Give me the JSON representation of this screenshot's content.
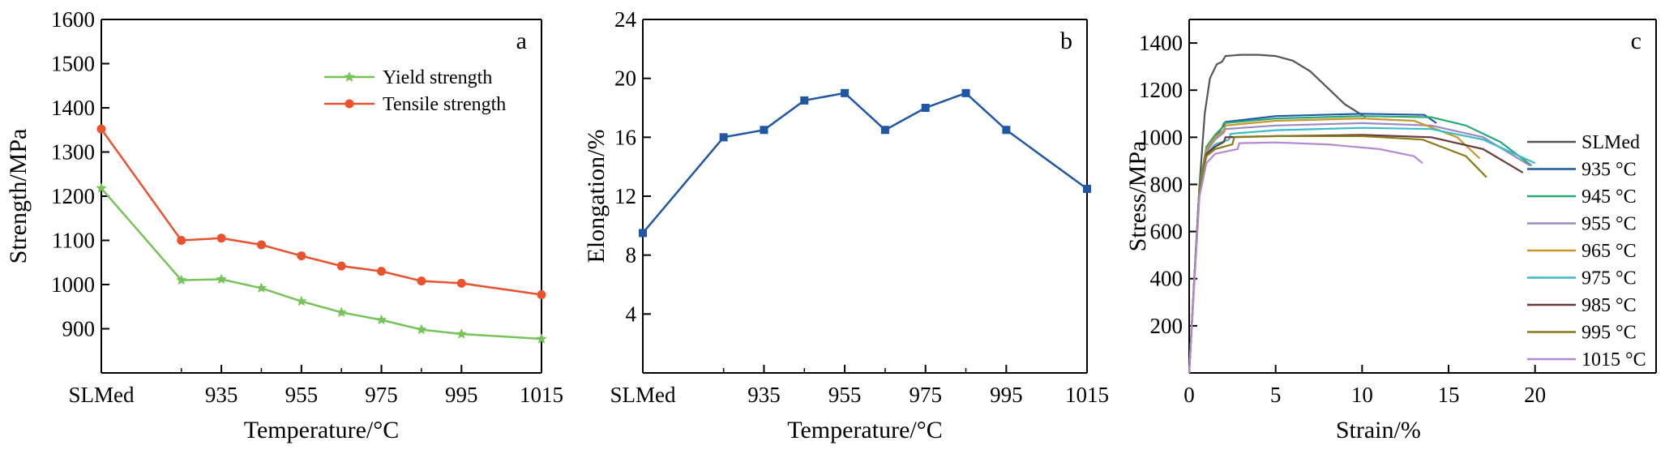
{
  "chart_data": [
    {
      "panel_label": "a",
      "type": "line",
      "xlabel": "Temperature/°C",
      "ylabel": "Strength/MPa",
      "ylim": [
        800,
        1600
      ],
      "y_ticks": [
        "900",
        "1000",
        "1100",
        "1200",
        "1300",
        "1400",
        "1500",
        "1600"
      ],
      "categories": [
        "SLMed",
        "925",
        "935",
        "945",
        "955",
        "965",
        "975",
        "985",
        "995",
        "1015"
      ],
      "x_tick_labels": [
        "SLMed",
        "935",
        "955",
        "975",
        "995",
        "1015"
      ],
      "legend_position": "top-right",
      "series": [
        {
          "name": "Yield strength",
          "color": "#76c35a",
          "marker": "star",
          "values": [
            1218,
            1010,
            1012,
            992,
            962,
            937,
            920,
            898,
            888,
            877
          ]
        },
        {
          "name": "Tensile strength",
          "color": "#e9522f",
          "marker": "circle",
          "values": [
            1352,
            1100,
            1105,
            1090,
            1065,
            1042,
            1030,
            1008,
            1003,
            977
          ]
        }
      ]
    },
    {
      "panel_label": "b",
      "type": "line",
      "xlabel": "Temperature/°C",
      "ylabel": "Elongation/%",
      "ylim": [
        0,
        24
      ],
      "y_ticks": [
        "4",
        "8",
        "12",
        "16",
        "20",
        "24"
      ],
      "categories": [
        "SLMed",
        "925",
        "935",
        "945",
        "955",
        "965",
        "975",
        "985",
        "995",
        "1015"
      ],
      "x_tick_labels": [
        "SLMed",
        "935",
        "955",
        "975",
        "995",
        "1015"
      ],
      "series": [
        {
          "color": "#1f56a6",
          "marker": "square",
          "values": [
            9.5,
            16.0,
            16.5,
            18.5,
            19.0,
            16.5,
            18.0,
            19.0,
            16.5,
            12.5
          ]
        }
      ]
    },
    {
      "panel_label": "c",
      "type": "line",
      "xlabel": "Strain/%",
      "ylabel": "Stress/MPa",
      "xlim": [
        0,
        27
      ],
      "ylim": [
        0,
        1500
      ],
      "x_ticks": [
        "0",
        "5",
        "10",
        "15",
        "20"
      ],
      "y_ticks": [
        "200",
        "400",
        "600",
        "800",
        "1000",
        "1200",
        "1400"
      ],
      "legend_position": "right",
      "series": [
        {
          "name": "SLMed",
          "color": "#555555",
          "x": [
            0,
            0.3,
            0.6,
            0.9,
            1.2,
            1.6,
            1.9,
            2.1,
            3,
            4,
            5,
            6,
            7,
            8,
            9,
            10.2
          ],
          "y": [
            0,
            400,
            800,
            1100,
            1250,
            1310,
            1320,
            1345,
            1350,
            1350,
            1345,
            1325,
            1280,
            1210,
            1140,
            1085
          ]
        },
        {
          "name": "935 °C",
          "color": "#1f5aa8",
          "x": [
            0,
            0.3,
            0.6,
            1.0,
            1.5,
            2.0,
            2.1,
            5,
            10,
            13.6,
            14.3
          ],
          "y": [
            0,
            400,
            800,
            950,
            1000,
            1050,
            1065,
            1090,
            1100,
            1095,
            1060
          ]
        },
        {
          "name": "945 °C",
          "color": "#2aa876",
          "x": [
            0,
            0.3,
            0.6,
            1.0,
            1.5,
            1.9,
            2.0,
            5,
            10,
            14,
            16,
            18,
            19.8
          ],
          "y": [
            0,
            400,
            800,
            960,
            1010,
            1040,
            1060,
            1080,
            1090,
            1085,
            1050,
            980,
            880
          ]
        },
        {
          "name": "955 °C",
          "color": "#9a8ac2",
          "x": [
            0,
            0.3,
            0.6,
            1.0,
            1.5,
            2.0,
            2.1,
            5,
            10,
            14,
            17,
            19.7
          ],
          "y": [
            0,
            400,
            780,
            940,
            990,
            1020,
            1035,
            1050,
            1060,
            1050,
            1000,
            880
          ]
        },
        {
          "name": "965 °C",
          "color": "#c8962a",
          "x": [
            0,
            0.3,
            0.6,
            1.0,
            1.5,
            2.0,
            2.1,
            5,
            10,
            13,
            15.5,
            16.8
          ],
          "y": [
            0,
            400,
            780,
            950,
            1000,
            1030,
            1050,
            1070,
            1080,
            1070,
            1000,
            910
          ]
        },
        {
          "name": "975 °C",
          "color": "#3bbcc8",
          "x": [
            0,
            0.3,
            0.6,
            1.0,
            1.5,
            2.3,
            2.4,
            5,
            10,
            14,
            17,
            20
          ],
          "y": [
            0,
            400,
            780,
            930,
            970,
            990,
            1015,
            1030,
            1040,
            1035,
            990,
            890
          ]
        },
        {
          "name": "985 °C",
          "color": "#6b3a3a",
          "x": [
            0,
            0.3,
            0.6,
            1.0,
            1.5,
            2.0,
            2.1,
            5,
            10,
            14,
            17,
            19.3
          ],
          "y": [
            0,
            400,
            780,
            930,
            960,
            980,
            1000,
            1005,
            1010,
            1000,
            950,
            850
          ]
        },
        {
          "name": "995 °C",
          "color": "#8a7a1a",
          "x": [
            0,
            0.3,
            0.6,
            1.0,
            1.5,
            2.5,
            2.6,
            5,
            10,
            13.5,
            16,
            17.2
          ],
          "y": [
            0,
            400,
            780,
            920,
            950,
            970,
            1000,
            1005,
            1005,
            990,
            920,
            830
          ]
        },
        {
          "name": "1015 °C",
          "color": "#b388d4",
          "x": [
            0,
            0.3,
            0.6,
            1.0,
            1.5,
            2.8,
            2.9,
            5,
            8,
            11,
            13,
            13.5
          ],
          "y": [
            0,
            380,
            750,
            890,
            930,
            950,
            975,
            978,
            970,
            950,
            920,
            890
          ]
        }
      ]
    }
  ]
}
